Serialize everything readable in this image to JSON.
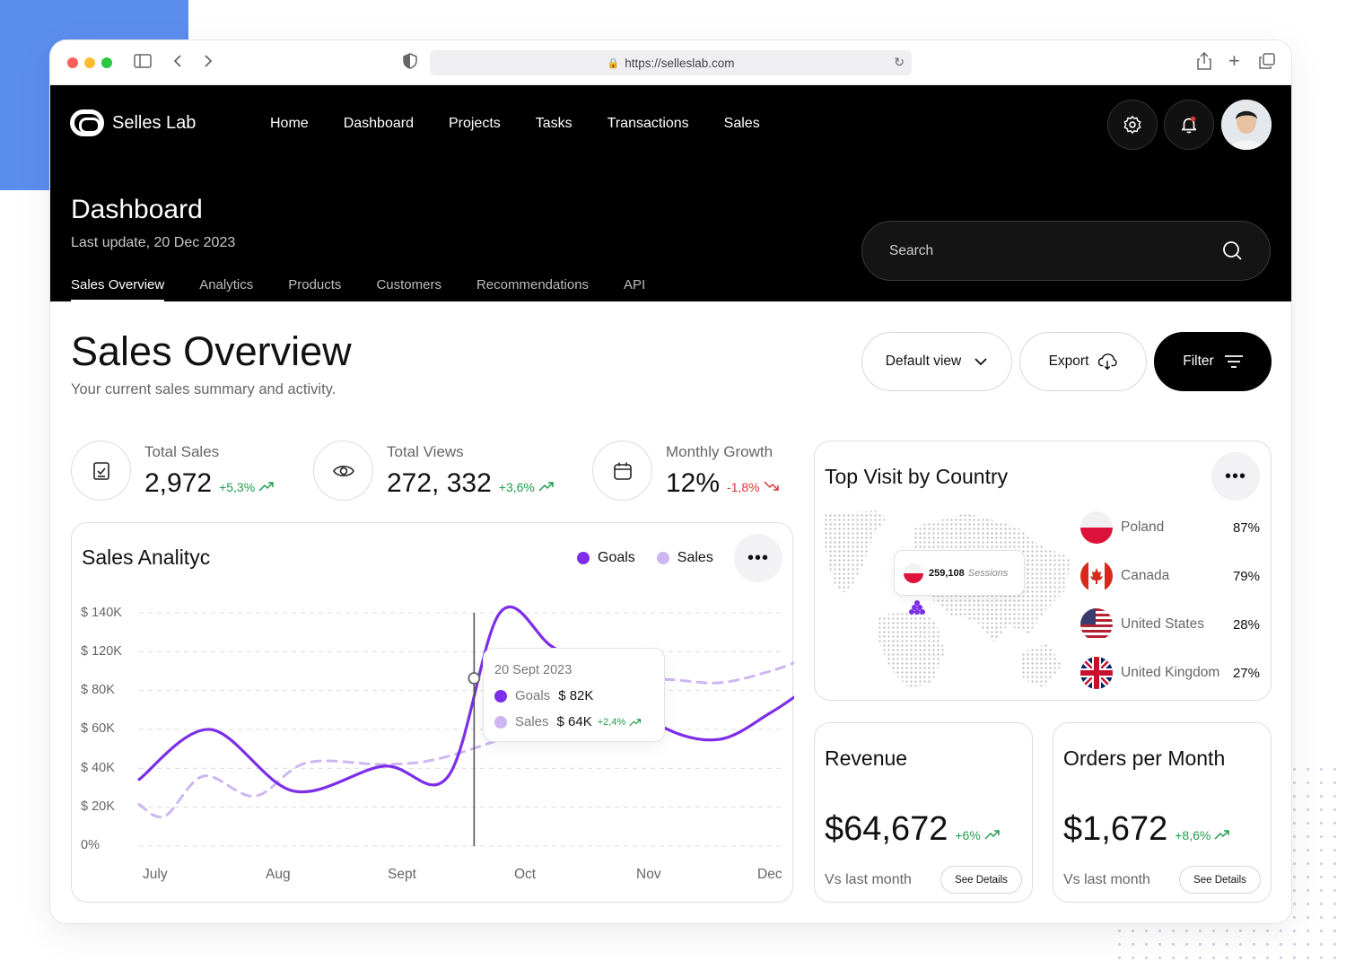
{
  "browser": {
    "url": "https://selleslab.com"
  },
  "brand": {
    "name": "Selles Lab"
  },
  "nav": [
    "Home",
    "Dashboard",
    "Projects",
    "Tasks",
    "Transactions",
    "Sales"
  ],
  "header": {
    "title": "Dashboard",
    "subtitle": "Last update, 20 Dec 2023",
    "tabs": [
      "Sales Overview",
      "Analytics",
      "Products",
      "Customers",
      "Recommendations",
      "API"
    ],
    "active_tab": "Sales Overview",
    "search_placeholder": "Search"
  },
  "page": {
    "title": "Sales Overview",
    "subtitle": "Your current sales summary and activity.",
    "default_view_label": "Default view",
    "export_label": "Export",
    "filter_label": "Filter"
  },
  "stats": [
    {
      "label": "Total Sales",
      "value": "2,972",
      "change": "+5,3%",
      "direction": "up",
      "icon": "clipboard-check-icon"
    },
    {
      "label": "Total Views",
      "value": "272, 332",
      "change": "+3,6%",
      "direction": "up",
      "icon": "eye-icon"
    },
    {
      "label": "Monthly Growth",
      "value": "12%",
      "change": "-1,8%",
      "direction": "down",
      "icon": "calendar-icon"
    }
  ],
  "sales_chart": {
    "title": "Sales Analityc",
    "legend": [
      "Goals",
      "Sales"
    ],
    "tooltip": {
      "date": "20 Sept 2023",
      "goals_label": "Goals",
      "goals_value": "$ 82K",
      "sales_label": "Sales",
      "sales_value": "$ 64K",
      "sales_change": "+2,4%"
    }
  },
  "chart_data": {
    "type": "line",
    "title": "Sales Analityc",
    "x": [
      "July",
      "Aug",
      "Sept",
      "Oct",
      "Nov",
      "Dec"
    ],
    "y_ticks": [
      "$ 140K",
      "$ 120K",
      "$ 80K",
      "$ 60K",
      "$ 40K",
      "$ 20K",
      "0%"
    ],
    "series": [
      {
        "name": "Goals",
        "color": "#7c2ee8",
        "style": "solid",
        "points": [
          [
            0,
            40
          ],
          [
            0.55,
            70
          ],
          [
            1.2,
            33
          ],
          [
            1.9,
            48
          ],
          [
            2.4,
            42
          ],
          [
            2.8,
            140
          ],
          [
            3.2,
            120
          ],
          [
            3.6,
            100
          ],
          [
            4.05,
            72
          ],
          [
            4.5,
            64
          ],
          [
            4.9,
            80
          ],
          [
            5.15,
            93
          ]
        ]
      },
      {
        "name": "Sales",
        "color": "#cdb6f2",
        "style": "dashed",
        "points": [
          [
            0,
            25
          ],
          [
            0.2,
            18
          ],
          [
            0.5,
            42
          ],
          [
            0.9,
            30
          ],
          [
            1.3,
            50
          ],
          [
            1.9,
            49
          ],
          [
            2.3,
            52
          ],
          [
            2.8,
            64
          ],
          [
            3.2,
            76
          ],
          [
            3.6,
            96
          ],
          [
            4.05,
            100
          ],
          [
            4.5,
            98
          ],
          [
            4.9,
            105
          ],
          [
            5.15,
            112
          ]
        ]
      }
    ],
    "marker_x": 2.6,
    "ylim": [
      0,
      140
    ],
    "grid": true,
    "legend_position": "top-right"
  },
  "countries": {
    "title": "Top Visit by Country",
    "map_tooltip": {
      "value": "259,108",
      "label": "Sessions"
    },
    "items": [
      {
        "name": "Poland",
        "pct": "87%",
        "flag": "poland-flag-icon"
      },
      {
        "name": "Canada",
        "pct": "79%",
        "flag": "canada-flag-icon"
      },
      {
        "name": "United States",
        "pct": "28%",
        "flag": "us-flag-icon"
      },
      {
        "name": "United Kingdom",
        "pct": "27%",
        "flag": "uk-flag-icon"
      }
    ]
  },
  "revenue": {
    "title": "Revenue",
    "value": "$64,672",
    "change": "+6%",
    "vs": "Vs last month",
    "details": "See Details"
  },
  "orders": {
    "title": "Orders per Month",
    "value": "$1,672",
    "change": "+8,6%",
    "vs": "Vs last month",
    "details": "See Details"
  },
  "colors": {
    "accent": "#7c2ee8",
    "accent_light": "#cdb6f2",
    "positive": "#1f9e4a",
    "negative": "#d93636",
    "header_bg": "#000000"
  }
}
